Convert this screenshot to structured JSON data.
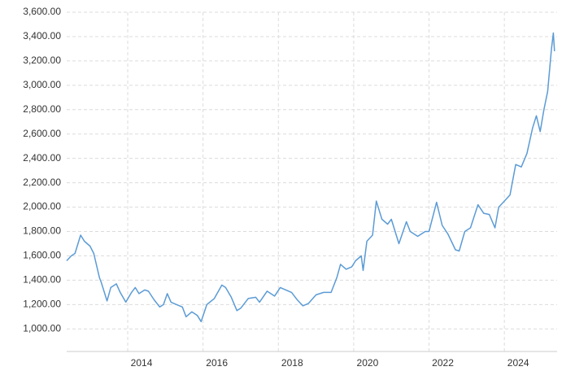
{
  "chart_data": {
    "type": "line",
    "x": [
      2012.38,
      2012.5,
      2012.6,
      2012.75,
      2012.85,
      2013.0,
      2013.1,
      2013.25,
      2013.3,
      2013.45,
      2013.55,
      2013.7,
      2013.8,
      2013.95,
      2014.1,
      2014.2,
      2014.3,
      2014.45,
      2014.55,
      2014.7,
      2014.85,
      2014.95,
      2015.05,
      2015.15,
      2015.3,
      2015.45,
      2015.55,
      2015.7,
      2015.85,
      2015.95,
      2016.1,
      2016.3,
      2016.5,
      2016.6,
      2016.75,
      2016.9,
      2017.0,
      2017.2,
      2017.4,
      2017.5,
      2017.7,
      2017.9,
      2018.05,
      2018.2,
      2018.35,
      2018.5,
      2018.65,
      2018.8,
      2019.0,
      2019.2,
      2019.4,
      2019.55,
      2019.65,
      2019.8,
      2019.95,
      2020.05,
      2020.2,
      2020.25,
      2020.35,
      2020.5,
      2020.6,
      2020.75,
      2020.9,
      2021.0,
      2021.2,
      2021.4,
      2021.5,
      2021.7,
      2021.9,
      2022.0,
      2022.2,
      2022.35,
      2022.5,
      2022.7,
      2022.8,
      2022.95,
      2023.1,
      2023.3,
      2023.45,
      2023.6,
      2023.75,
      2023.85,
      2024.0,
      2024.15,
      2024.3,
      2024.45,
      2024.6,
      2024.75,
      2024.85,
      2024.95,
      2025.05,
      2025.15,
      2025.25,
      2025.3,
      2025.33
    ],
    "series": [
      {
        "color": "#5b9bd5",
        "values": [
          1560,
          1600,
          1620,
          1770,
          1720,
          1680,
          1620,
          1420,
          1380,
          1230,
          1340,
          1370,
          1300,
          1220,
          1300,
          1340,
          1290,
          1320,
          1310,
          1240,
          1180,
          1200,
          1290,
          1220,
          1200,
          1180,
          1100,
          1140,
          1110,
          1060,
          1200,
          1250,
          1360,
          1340,
          1260,
          1150,
          1170,
          1250,
          1260,
          1220,
          1310,
          1270,
          1340,
          1320,
          1300,
          1240,
          1190,
          1210,
          1280,
          1300,
          1300,
          1420,
          1530,
          1490,
          1510,
          1560,
          1600,
          1480,
          1720,
          1770,
          2050,
          1900,
          1860,
          1900,
          1700,
          1880,
          1800,
          1760,
          1800,
          1800,
          2040,
          1850,
          1780,
          1650,
          1640,
          1800,
          1830,
          2020,
          1950,
          1940,
          1830,
          2000,
          2050,
          2100,
          2350,
          2330,
          2440,
          2650,
          2750,
          2620,
          2800,
          2950,
          3300,
          3430,
          3280
        ]
      }
    ],
    "xlim": [
      2012.38,
      2025.4
    ],
    "xticks": [
      2014,
      2016,
      2018,
      2020,
      2022,
      2024
    ],
    "ylim": [
      815,
      3600
    ],
    "yticks": [
      {
        "value": 1000,
        "label": "1,000.00"
      },
      {
        "value": 1200,
        "label": "1,200.00"
      },
      {
        "value": 1400,
        "label": "1,400.00"
      },
      {
        "value": 1600,
        "label": "1,600.00"
      },
      {
        "value": 1800,
        "label": "1,800.00"
      },
      {
        "value": 2000,
        "label": "2,000.00"
      },
      {
        "value": 2200,
        "label": "2,200.00"
      },
      {
        "value": 2400,
        "label": "2,400.00"
      },
      {
        "value": 2600,
        "label": "2,600.00"
      },
      {
        "value": 2800,
        "label": "2,800.00"
      },
      {
        "value": 3000,
        "label": "3,000.00"
      },
      {
        "value": 3200,
        "label": "3,200.00"
      },
      {
        "value": 3400,
        "label": "3,400.00"
      },
      {
        "value": 3600,
        "label": "3,600.00"
      }
    ],
    "grid": true
  }
}
